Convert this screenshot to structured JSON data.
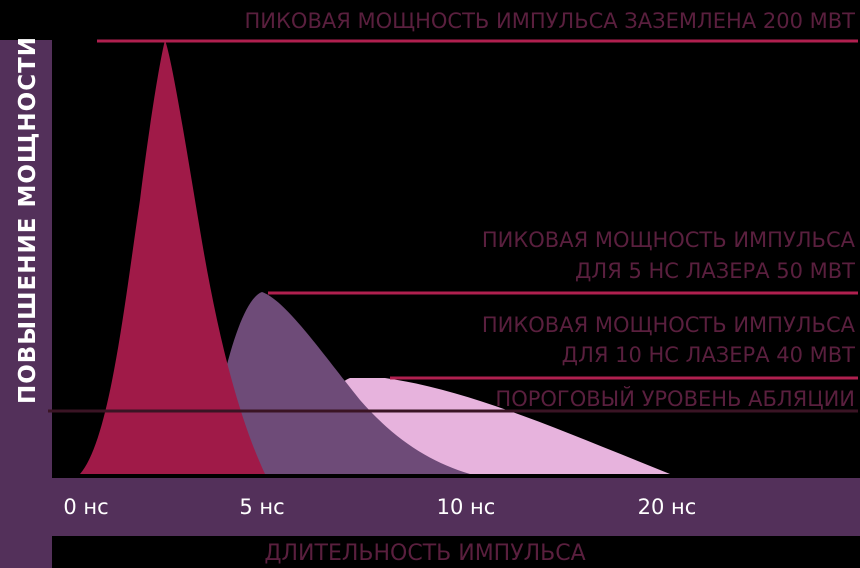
{
  "diagram": {
    "y_axis_label": "ПОВЫШЕНИЕ МОЩНОСТИ",
    "x_axis_label": "ДЛИТЕЛЬНОСТЬ ИМПУЛЬСА",
    "x_ticks": [
      "0 нс",
      "5 нс",
      "10 нс",
      "20 нс"
    ],
    "annotations": {
      "peak_high": "ПИКОВАЯ МОЩНОСТЬ ИМПУЛЬСА ЗАЗЕМЛЕНА 200 МВТ",
      "peak_mid_line1": "ПИКОВАЯ МОЩНОСТЬ ИМПУЛЬСА",
      "peak_mid_line2": "ДЛЯ 5 НС ЛАЗЕРА 50 МВТ",
      "peak_low_line1": "ПИКОВАЯ МОЩНОСТЬ ИМПУЛЬСА",
      "peak_low_line2": "ДЛЯ 10 НС ЛАЗЕРА 40 МВТ",
      "threshold": "ПОРОГОВЫЙ УРОВЕНЬ АБЛЯЦИИ"
    },
    "colors": {
      "background": "#000000",
      "axis_band": "#53305a",
      "pulse_short": "#a01a48",
      "pulse_medium": "#6e4b78",
      "pulse_long": "#e7b3dd",
      "peak_lines": "#b0204f",
      "threshold_line": "#3a1424",
      "annotation_text": "#5a1f3e"
    }
  }
}
